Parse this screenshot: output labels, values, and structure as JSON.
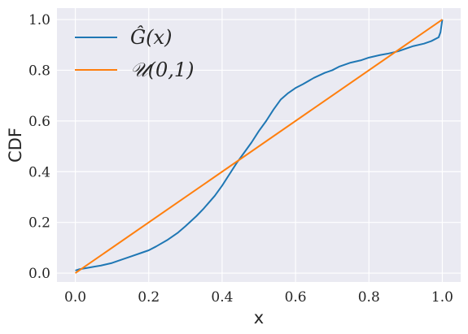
{
  "chart_data": {
    "type": "line",
    "xlabel": "x",
    "ylabel": "CDF",
    "xlim": [
      -0.05,
      1.05
    ],
    "ylim": [
      -0.035,
      1.045
    ],
    "xticks": [
      0.0,
      0.2,
      0.4,
      0.6,
      0.8,
      1.0
    ],
    "yticks": [
      0.0,
      0.2,
      0.4,
      0.6,
      0.8,
      1.0
    ],
    "xtick_labels": [
      "0.0",
      "0.2",
      "0.4",
      "0.6",
      "0.8",
      "1.0"
    ],
    "ytick_labels": [
      "0.0",
      "0.2",
      "0.4",
      "0.6",
      "0.8",
      "1.0"
    ],
    "grid": true,
    "legend_position": "top-left",
    "background_color": "#EAEAF2",
    "series": [
      {
        "name": "Ĝ(x)",
        "color": "#1f77b4",
        "x": [
          0.0,
          0.01,
          0.03,
          0.05,
          0.07,
          0.1,
          0.12,
          0.15,
          0.18,
          0.2,
          0.22,
          0.25,
          0.28,
          0.3,
          0.33,
          0.35,
          0.38,
          0.4,
          0.42,
          0.44,
          0.46,
          0.48,
          0.5,
          0.52,
          0.54,
          0.56,
          0.58,
          0.6,
          0.62,
          0.65,
          0.68,
          0.7,
          0.72,
          0.75,
          0.78,
          0.8,
          0.83,
          0.85,
          0.88,
          0.9,
          0.92,
          0.95,
          0.97,
          0.99,
          0.995,
          1.0
        ],
        "values": [
          0.01,
          0.015,
          0.02,
          0.025,
          0.03,
          0.04,
          0.05,
          0.065,
          0.08,
          0.09,
          0.105,
          0.13,
          0.16,
          0.185,
          0.225,
          0.255,
          0.305,
          0.345,
          0.39,
          0.435,
          0.475,
          0.515,
          0.56,
          0.6,
          0.645,
          0.685,
          0.71,
          0.73,
          0.745,
          0.77,
          0.79,
          0.8,
          0.815,
          0.83,
          0.84,
          0.85,
          0.86,
          0.865,
          0.875,
          0.885,
          0.895,
          0.905,
          0.915,
          0.93,
          0.95,
          1.0
        ]
      },
      {
        "name": "𝒰(0,1)",
        "color": "#ff7f0e",
        "x": [
          0.0,
          1.0
        ],
        "values": [
          0.0,
          1.0
        ]
      }
    ]
  }
}
